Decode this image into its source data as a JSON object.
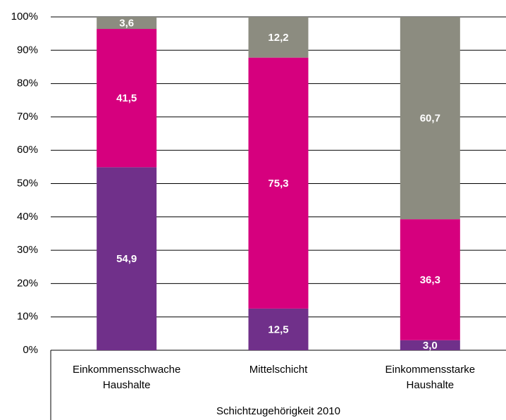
{
  "chart_data": {
    "type": "stacked_bar",
    "categories": [
      "Einkommensschwache Haushalte",
      "Mittelschicht",
      "Einkommensstarke Haushalte"
    ],
    "x_label": "Schichtzugehörigkeit 2010",
    "series": [
      {
        "color": "#70308a",
        "values": [
          54.9,
          12.5,
          3.0
        ],
        "value_labels": [
          "54,9",
          "12,5",
          "3,0"
        ]
      },
      {
        "color": "#d6007e",
        "values": [
          41.5,
          75.3,
          36.3
        ],
        "value_labels": [
          "41,5",
          "75,3",
          "36,3"
        ]
      },
      {
        "color": "#8c8c80",
        "values": [
          3.6,
          12.2,
          60.7
        ],
        "value_labels": [
          "3,6",
          "12,2",
          "60,7"
        ]
      }
    ],
    "ylim": [
      0,
      100
    ],
    "yticks": [
      {
        "value": 0,
        "label": "0%"
      },
      {
        "value": 10,
        "label": "10%"
      },
      {
        "value": 20,
        "label": "20%"
      },
      {
        "value": 30,
        "label": "30%"
      },
      {
        "value": 40,
        "label": "40%"
      },
      {
        "value": 50,
        "label": "50%"
      },
      {
        "value": 60,
        "label": "60%"
      },
      {
        "value": 70,
        "label": "70%"
      },
      {
        "value": 80,
        "label": "80%"
      },
      {
        "value": 90,
        "label": "90%"
      },
      {
        "value": 100,
        "label": "100%"
      }
    ],
    "grid": true
  }
}
